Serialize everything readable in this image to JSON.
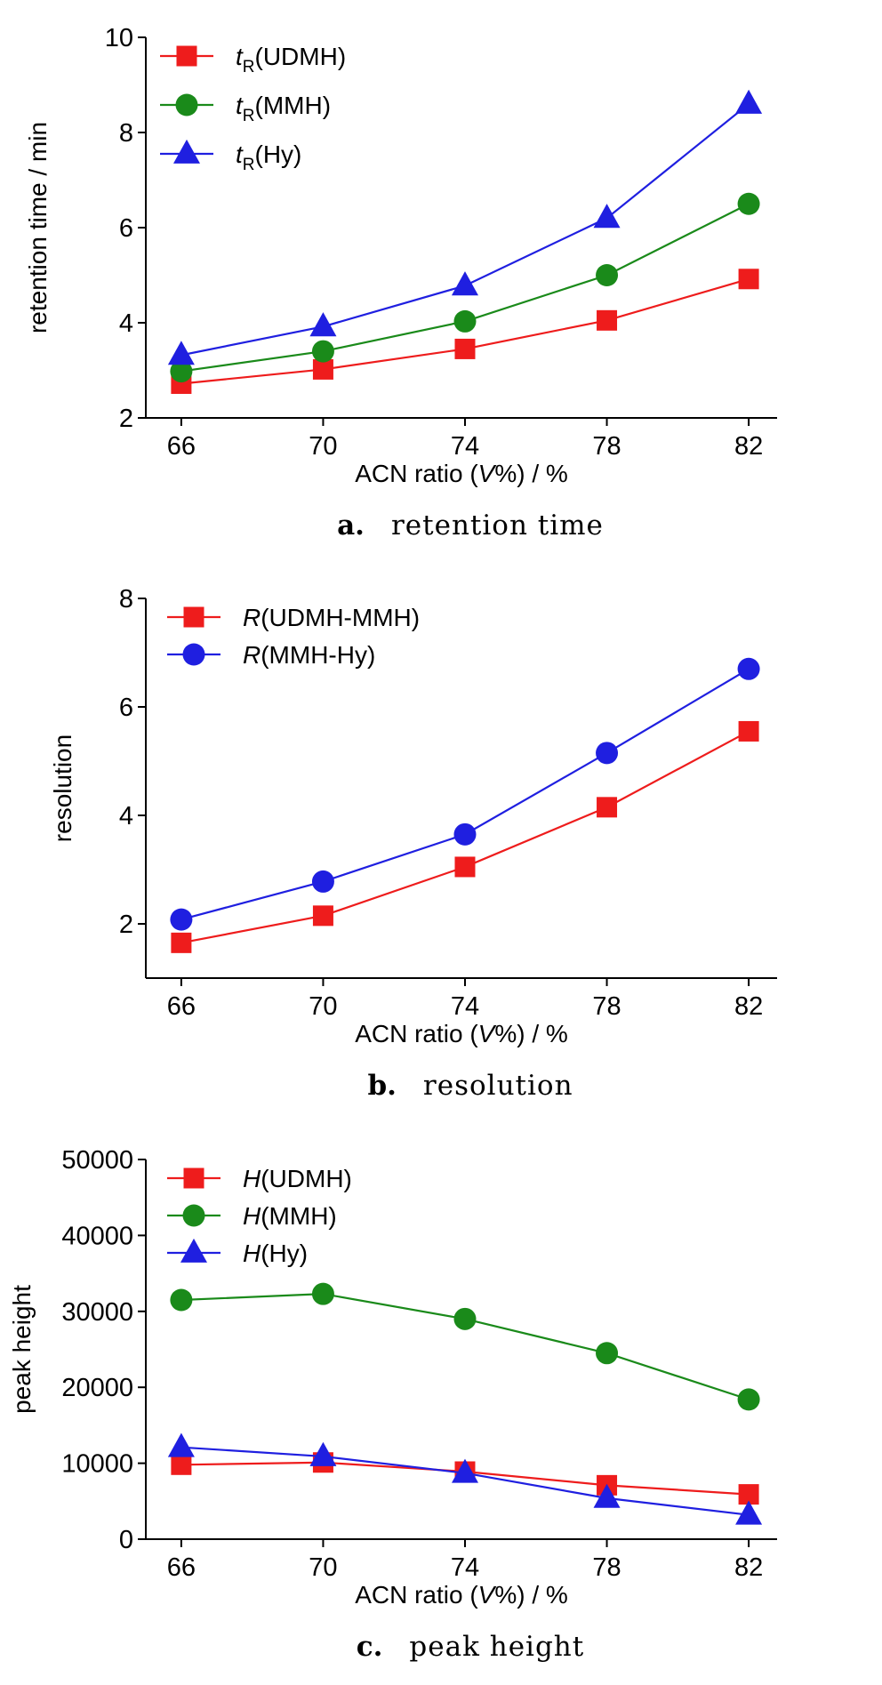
{
  "chart_data": [
    {
      "type": "line",
      "panel_letter": "a.",
      "caption": "retention time",
      "xlabel": "ACN ratio (V%) / %",
      "xlabel_parts": [
        "ACN ratio (",
        "V",
        "%) / %"
      ],
      "ylabel": "retention time / min",
      "x": [
        66,
        70,
        74,
        78,
        82
      ],
      "x_ticks": [
        "66",
        "70",
        "74",
        "78",
        "82"
      ],
      "xlim": [
        65,
        82.8
      ],
      "ylim": [
        2,
        10
      ],
      "y_ticks": [
        "2",
        "4",
        "6",
        "8",
        "10"
      ],
      "y_tick_values": [
        2,
        4,
        6,
        8,
        10
      ],
      "legend_position": "top-left",
      "series": [
        {
          "name": "tR(UDMH)",
          "italic": "t",
          "sub": "R",
          "suffix": "(UDMH)",
          "marker": "square",
          "color": "#ee1c1c",
          "values": [
            2.72,
            3.02,
            3.45,
            4.05,
            4.92
          ]
        },
        {
          "name": "tR(MMH)",
          "italic": "t",
          "sub": "R",
          "suffix": "(MMH)",
          "marker": "circle",
          "color": "#1a8a1a",
          "values": [
            2.98,
            3.4,
            4.03,
            5.0,
            6.5
          ]
        },
        {
          "name": "tR(Hy)",
          "italic": "t",
          "sub": "R",
          "suffix": "(Hy)",
          "marker": "triangle",
          "color": "#1f1fe0",
          "values": [
            3.32,
            3.92,
            4.78,
            6.2,
            8.6
          ]
        }
      ]
    },
    {
      "type": "line",
      "panel_letter": "b.",
      "caption": "resolution",
      "xlabel": "ACN ratio (V%) / %",
      "xlabel_parts": [
        "ACN ratio (",
        "V",
        "%) / %"
      ],
      "ylabel": "resolution",
      "x": [
        66,
        70,
        74,
        78,
        82
      ],
      "x_ticks": [
        "66",
        "70",
        "74",
        "78",
        "82"
      ],
      "xlim": [
        65,
        82.8
      ],
      "ylim": [
        1,
        8
      ],
      "y_ticks": [
        "2",
        "4",
        "6",
        "8"
      ],
      "y_tick_values": [
        2,
        4,
        6,
        8
      ],
      "legend_position": "top-left",
      "series": [
        {
          "name": "R(UDMH-MMH)",
          "italic": "R",
          "sub": "",
          "suffix": "(UDMH-MMH)",
          "marker": "square",
          "color": "#ee1c1c",
          "values": [
            1.65,
            2.15,
            3.05,
            4.15,
            5.55
          ]
        },
        {
          "name": "R(MMH-Hy)",
          "italic": "R",
          "sub": "",
          "suffix": "(MMH-Hy)",
          "marker": "circle",
          "color": "#1f1fe0",
          "values": [
            2.08,
            2.78,
            3.65,
            5.15,
            6.7
          ]
        }
      ]
    },
    {
      "type": "line",
      "panel_letter": "c.",
      "caption": "peak height",
      "xlabel": "ACN ratio (V%) / %",
      "xlabel_parts": [
        "ACN ratio (",
        "V",
        "%) / %"
      ],
      "ylabel": "peak height",
      "x": [
        66,
        70,
        74,
        78,
        82
      ],
      "x_ticks": [
        "66",
        "70",
        "74",
        "78",
        "82"
      ],
      "xlim": [
        65,
        82.8
      ],
      "ylim": [
        0,
        50000
      ],
      "y_ticks": [
        "0",
        "10000",
        "20000",
        "30000",
        "40000",
        "50000"
      ],
      "y_tick_values": [
        0,
        10000,
        20000,
        30000,
        40000,
        50000
      ],
      "legend_position": "top-left",
      "series": [
        {
          "name": "H(UDMH)",
          "italic": "H",
          "sub": "",
          "suffix": "(UDMH)",
          "marker": "square",
          "color": "#ee1c1c",
          "values": [
            9800,
            10100,
            8900,
            7100,
            5900
          ]
        },
        {
          "name": "H(MMH)",
          "italic": "H",
          "sub": "",
          "suffix": "(MMH)",
          "marker": "circle",
          "color": "#1a8a1a",
          "values": [
            31500,
            32300,
            29000,
            24500,
            18400
          ]
        },
        {
          "name": "H(Hy)",
          "italic": "H",
          "sub": "",
          "suffix": "(Hy)",
          "marker": "triangle",
          "color": "#1f1fe0",
          "values": [
            12100,
            10900,
            8700,
            5400,
            3200
          ]
        }
      ]
    }
  ]
}
